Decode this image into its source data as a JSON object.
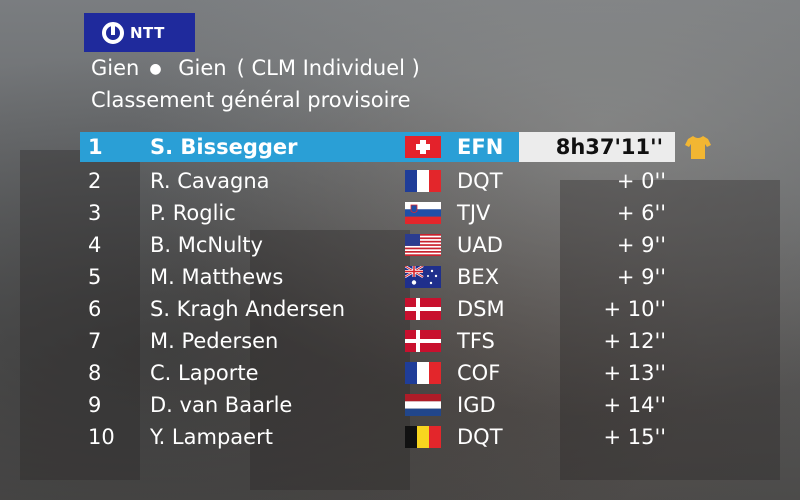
{
  "broadcaster": {
    "logo_text": "NTT"
  },
  "stage": {
    "start": "Gien",
    "finish": "Gien",
    "type": "( CLM Individuel )"
  },
  "classification_title": "Classement général provisoire",
  "rows": [
    {
      "pos": "1",
      "name": "S. Bissegger",
      "flag": "switzerland-flag",
      "team": "EFN",
      "time": "8h37'11''",
      "leader": true
    },
    {
      "pos": "2",
      "name": "R. Cavagna",
      "flag": "france-flag",
      "team": "DQT",
      "time": "+ 0''"
    },
    {
      "pos": "3",
      "name": "P. Roglic",
      "flag": "slovenia-flag",
      "team": "TJV",
      "time": "+ 6''"
    },
    {
      "pos": "4",
      "name": "B. McNulty",
      "flag": "usa-flag",
      "team": "UAD",
      "time": "+ 9''"
    },
    {
      "pos": "5",
      "name": "M. Matthews",
      "flag": "australia-flag",
      "team": "BEX",
      "time": "+ 9''"
    },
    {
      "pos": "6",
      "name": "S. Kragh Andersen",
      "flag": "denmark-flag",
      "team": "DSM",
      "time": "+ 10''"
    },
    {
      "pos": "7",
      "name": "M. Pedersen",
      "flag": "denmark-flag",
      "team": "TFS",
      "time": "+ 12''"
    },
    {
      "pos": "8",
      "name": "C. Laporte",
      "flag": "france-flag",
      "team": "COF",
      "time": "+ 13''"
    },
    {
      "pos": "9",
      "name": "D. van Baarle",
      "flag": "netherlands-flag",
      "team": "IGD",
      "time": "+ 14''"
    },
    {
      "pos": "10",
      "name": "Y. Lampaert",
      "flag": "belgium-flag",
      "team": "DQT",
      "time": "+ 15''"
    }
  ],
  "colors": {
    "leader_bar": "#2a9fd6",
    "logo_bg": "#1f2a9c",
    "time_box": "#ececec",
    "jersey": "#f2b632"
  },
  "icons": {
    "leader_jersey": "yellow-jersey-icon"
  }
}
